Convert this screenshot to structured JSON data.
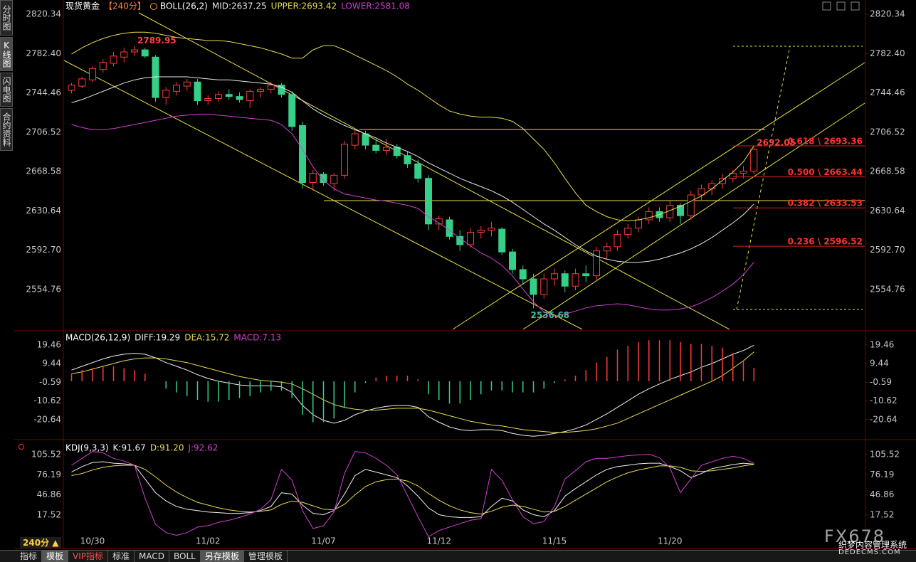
{
  "app": {
    "side_tabs": [
      "分时图",
      "K线图",
      "闪电图",
      "合约资料"
    ],
    "period_button": "240分 ▲",
    "bottom_tabs": [
      "指标",
      "模板",
      "VIP指标",
      "标准",
      "MACD",
      "BOLL",
      "另存模板",
      "管理模板"
    ],
    "watermark": {
      "logo": "FX678",
      "text": "织梦内容管理系统",
      "url": "DEDECMS.COM"
    }
  },
  "chart_data": [
    {
      "type": "candlestick",
      "title": "现货黄金",
      "period": "【240分】",
      "indicator": "BOLL(26,2)",
      "up_color": "#ff3b3b",
      "down_color": "#36cf88",
      "mark_extremes": true,
      "categories": [
        null,
        null,
        "10/30",
        null,
        null,
        null,
        null,
        null,
        null,
        null,
        null,
        null,
        null,
        "11/02",
        null,
        null,
        null,
        null,
        null,
        null,
        null,
        null,
        null,
        null,
        "11/07",
        null,
        null,
        null,
        null,
        null,
        null,
        null,
        null,
        null,
        null,
        "11/12",
        null,
        null,
        null,
        null,
        null,
        null,
        null,
        null,
        null,
        null,
        "11/15",
        null,
        null,
        null,
        null,
        null,
        null,
        null,
        null,
        null,
        null,
        "11/20",
        null,
        null,
        null,
        null,
        null,
        null,
        null,
        null
      ],
      "open": [
        2747,
        2751,
        2757,
        2767,
        2773,
        2779,
        2784,
        2786,
        2779,
        2740,
        2746,
        2751,
        2755,
        2737,
        2739,
        2743,
        2741,
        2737,
        2746,
        2748,
        2752,
        2743,
        2713,
        2658,
        2666,
        2657,
        2665,
        2694,
        2705,
        2694,
        2689,
        2692,
        2684,
        2676,
        2662,
        2618,
        2622,
        2606,
        2598,
        2610,
        2612,
        2613,
        2591,
        2574,
        2565,
        2550,
        2565,
        2570,
        2558,
        2570,
        2568,
        2592,
        2596,
        2608,
        2614,
        2622,
        2630,
        2624,
        2636,
        2626,
        2646,
        2652,
        2657,
        2662,
        2667,
        2669
      ],
      "high": [
        2754,
        2760,
        2770,
        2777,
        2784,
        2788,
        2789.95,
        2788,
        2781,
        2750,
        2755,
        2758,
        2758,
        2742,
        2746,
        2748,
        2745,
        2748,
        2750,
        2755,
        2754,
        2746,
        2717,
        2670,
        2668,
        2667,
        2698,
        2710,
        2708,
        2700,
        2700,
        2695,
        2688,
        2680,
        2665,
        2626,
        2625,
        2612,
        2614,
        2616,
        2620,
        2615,
        2594,
        2578,
        2570,
        2570,
        2575,
        2573,
        2575,
        2578,
        2596,
        2600,
        2612,
        2618,
        2625,
        2634,
        2634,
        2640,
        2638,
        2650,
        2656,
        2660,
        2666,
        2670,
        2674,
        2692.05
      ],
      "low": [
        2744,
        2749,
        2755,
        2764,
        2770,
        2774,
        2780,
        2778,
        2736,
        2733,
        2742,
        2747,
        2733,
        2733,
        2736,
        2738,
        2735,
        2730,
        2740,
        2744,
        2740,
        2708,
        2652,
        2650,
        2655,
        2650,
        2662,
        2690,
        2690,
        2686,
        2685,
        2681,
        2672,
        2658,
        2612,
        2612,
        2603,
        2592,
        2595,
        2604,
        2606,
        2588,
        2570,
        2560,
        2536.68,
        2546,
        2558,
        2552,
        2554,
        2562,
        2564,
        2584,
        2592,
        2604,
        2610,
        2618,
        2620,
        2620,
        2618,
        2622,
        2640,
        2646,
        2652,
        2658,
        2662,
        2666
      ],
      "close": [
        2752,
        2758,
        2768,
        2774,
        2780,
        2784,
        2786,
        2780,
        2740,
        2747,
        2752,
        2755,
        2737,
        2739,
        2743,
        2741,
        2738,
        2746,
        2748,
        2752,
        2743,
        2712,
        2658,
        2667,
        2658,
        2665,
        2695,
        2705,
        2694,
        2689,
        2692,
        2684,
        2676,
        2662,
        2618,
        2623,
        2606,
        2598,
        2610,
        2612,
        2614,
        2591,
        2574,
        2565,
        2550,
        2565,
        2570,
        2558,
        2570,
        2568,
        2592,
        2596,
        2608,
        2614,
        2622,
        2630,
        2624,
        2636,
        2626,
        2646,
        2652,
        2657,
        2662,
        2667,
        2669,
        2690
      ],
      "series": [
        {
          "name": "MID:2637.25",
          "color": "#e6e6e6",
          "values": [
            2735,
            2738,
            2742,
            2746,
            2750,
            2754,
            2757,
            2759,
            2760,
            2760,
            2760,
            2760,
            2759,
            2758,
            2757,
            2757,
            2756,
            2755,
            2754,
            2753,
            2750,
            2745,
            2737,
            2729,
            2723,
            2718,
            2713,
            2709,
            2705,
            2701,
            2696,
            2692,
            2688,
            2683,
            2677,
            2672,
            2667,
            2662,
            2658,
            2654,
            2650,
            2645,
            2639,
            2632,
            2625,
            2618,
            2612,
            2605,
            2598,
            2592,
            2587,
            2584,
            2582,
            2581,
            2581,
            2582,
            2584,
            2587,
            2590,
            2594,
            2599,
            2605,
            2612,
            2619,
            2627,
            2637.25
          ]
        },
        {
          "name": "UPPER:2693.42",
          "color": "#e8dc50",
          "values": [
            2782,
            2788,
            2793,
            2797,
            2800,
            2802,
            2803,
            2803,
            2802,
            2800,
            2798,
            2797,
            2796,
            2795,
            2795,
            2794,
            2792,
            2790,
            2788,
            2785,
            2782,
            2778,
            2778,
            2786,
            2790,
            2790,
            2786,
            2781,
            2776,
            2771,
            2766,
            2760,
            2753,
            2747,
            2740,
            2733,
            2727,
            2724,
            2722,
            2721,
            2721,
            2720,
            2717,
            2710,
            2700,
            2690,
            2677,
            2662,
            2648,
            2636,
            2630,
            2625,
            2622,
            2621,
            2622,
            2624,
            2627,
            2631,
            2635,
            2640,
            2645,
            2652,
            2660,
            2668,
            2678,
            2693.42
          ]
        },
        {
          "name": "LOWER:2581.08",
          "color": "#d040d0",
          "values": [
            2714,
            2711,
            2709,
            2709,
            2710,
            2712,
            2714,
            2716,
            2718,
            2720,
            2722,
            2723,
            2724,
            2724,
            2723,
            2722,
            2721,
            2720,
            2719,
            2718,
            2714,
            2705,
            2690,
            2673,
            2660,
            2652,
            2647,
            2645,
            2643,
            2641,
            2640,
            2638,
            2636,
            2633,
            2625,
            2619,
            2612,
            2604,
            2597,
            2590,
            2585,
            2578,
            2568,
            2555,
            2543,
            2533,
            2529,
            2531,
            2534,
            2537,
            2539,
            2540,
            2541,
            2540,
            2538,
            2536,
            2535,
            2535,
            2536,
            2538,
            2542,
            2547,
            2553,
            2560,
            2569,
            2581.08
          ]
        }
      ],
      "fib_levels": [
        {
          "value": 2693.36,
          "label": "0.618 \\ 2693.36"
        },
        {
          "value": 2663.44,
          "label": "0.500 \\ 2663.44"
        },
        {
          "value": 2633.53,
          "label": "0.382 \\ 2633.53"
        },
        {
          "value": 2596.52,
          "label": "0.236 \\ 2596.52"
        }
      ],
      "ylim": [
        2516.3,
        2834.1
      ],
      "yticks": [
        2820.34,
        {
          "value": 2782.4,
          "label": "2782.40"
        },
        2744.46,
        2706.52,
        2668.58,
        2630.64,
        {
          "value": 2592.7,
          "label": "2592.70"
        },
        2554.76
      ]
    },
    {
      "type": "macd",
      "title": "MACD(26,12,9)",
      "up_color": "#ff3b3b",
      "down_color": "#36cf88",
      "series": [
        {
          "name": "DIFF:19.29",
          "color": "#f0f0f0",
          "style": "line",
          "values": [
            6,
            8,
            10,
            12,
            13.5,
            14.5,
            15,
            14.5,
            12.5,
            10,
            8,
            6,
            3.5,
            1.5,
            0,
            -1,
            -2,
            -2.5,
            -2.5,
            -2.5,
            -3,
            -6,
            -13,
            -18,
            -21,
            -22.5,
            -21,
            -18,
            -16,
            -14.5,
            -13.5,
            -13,
            -13,
            -14,
            -19,
            -22,
            -24.5,
            -26,
            -26.5,
            -26,
            -26,
            -26.5,
            -28,
            -29,
            -29.5,
            -29,
            -28,
            -27,
            -25.5,
            -23.5,
            -20.5,
            -17.5,
            -14,
            -10.5,
            -7,
            -4,
            -1.5,
            1,
            3,
            5,
            7.5,
            9.5,
            12,
            14.5,
            16.5,
            19.29
          ]
        },
        {
          "name": "DEA:15.72",
          "color": "#e8dc50",
          "style": "line",
          "values": [
            4,
            5,
            6.5,
            8,
            9.5,
            11,
            12,
            12.5,
            12.5,
            12,
            11,
            10,
            8.5,
            7,
            5.5,
            4,
            2.5,
            1.5,
            0.5,
            0,
            -0.5,
            -1.5,
            -4,
            -7,
            -10,
            -12.5,
            -14,
            -15,
            -15.5,
            -15.5,
            -15,
            -14.5,
            -14.5,
            -14.5,
            -15.5,
            -17,
            -18.5,
            -20,
            -21.5,
            -22.5,
            -23.5,
            -24,
            -25,
            -26,
            -26.5,
            -27,
            -27.5,
            -27.5,
            -27,
            -26.5,
            -25.5,
            -24,
            -22.5,
            -20,
            -17.5,
            -15,
            -12.5,
            -10,
            -7.5,
            -5,
            -2.5,
            0,
            3,
            7,
            11,
            15.72
          ]
        },
        {
          "name": "MACD:7.13",
          "color": "#d040d0",
          "style": "bar",
          "values": [
            4,
            6,
            7,
            8,
            8,
            7,
            6,
            4,
            0,
            -4,
            -6,
            -8,
            -10,
            -11,
            -11,
            -10,
            -9,
            -8,
            -6,
            -5,
            -5,
            -9,
            -18,
            -22,
            -22,
            -20,
            -14,
            -6,
            -1,
            2,
            3,
            3,
            3,
            1,
            -7,
            -10,
            -12,
            -12,
            -10,
            -7,
            -5,
            -5,
            -6,
            -6,
            -6,
            -4,
            -1,
            1,
            3,
            6,
            10,
            13,
            17,
            19,
            21,
            22,
            22,
            22,
            21,
            20,
            20,
            19,
            18,
            15,
            11,
            7.13
          ]
        }
      ],
      "ylim": [
        -30.2,
        26.3
      ],
      "yticks": [
        19.46,
        9.44,
        -0.59,
        -10.62,
        -20.64
      ]
    },
    {
      "type": "line",
      "title": "KDJ(9,3,3)",
      "series": [
        {
          "name": "K:91.67",
          "color": "#f0f0f0",
          "values": [
            80,
            88,
            94,
            95,
            93,
            92,
            90,
            70,
            50,
            38,
            30,
            26,
            24,
            22,
            21,
            20,
            20,
            21,
            24,
            30,
            50,
            48,
            32,
            20,
            18,
            24,
            48,
            75,
            84,
            80,
            76,
            72,
            60,
            45,
            28,
            18,
            15,
            14,
            14,
            15,
            30,
            42,
            38,
            25,
            18,
            15,
            24,
            45,
            56,
            66,
            76,
            84,
            88,
            90,
            92,
            93,
            93,
            88,
            82,
            72,
            78,
            85,
            88,
            91,
            93,
            91.67
          ]
        },
        {
          "name": "D:91.20",
          "color": "#e8dc50",
          "values": [
            75,
            78,
            83,
            87,
            89,
            90,
            90,
            84,
            73,
            61,
            51,
            43,
            36,
            32,
            28,
            25,
            23,
            22,
            23,
            25,
            33,
            38,
            36,
            31,
            26,
            25,
            33,
            47,
            59,
            66,
            69,
            70,
            67,
            60,
            49,
            39,
            31,
            25,
            21,
            19,
            23,
            29,
            32,
            30,
            26,
            22,
            23,
            30,
            39,
            48,
            57,
            66,
            73,
            79,
            83,
            86,
            89,
            89,
            87,
            82,
            81,
            82,
            84,
            86,
            89,
            91.2
          ]
        },
        {
          "name": "J:92.62",
          "color": "#d040d0",
          "values": [
            90,
            100,
            110,
            108,
            100,
            96,
            90,
            42,
            4,
            -8,
            -12,
            -8,
            0,
            2,
            7,
            10,
            14,
            19,
            26,
            40,
            84,
            68,
            24,
            -2,
            2,
            22,
            78,
            110,
            108,
            100,
            90,
            76,
            46,
            15,
            -14,
            -5,
            0,
            5,
            10,
            12,
            84,
            68,
            40,
            15,
            5,
            8,
            30,
            70,
            82,
            95,
            100,
            100,
            102,
            104,
            105,
            106,
            101,
            86,
            50,
            70,
            90,
            95,
            100,
            103,
            100,
            92.62
          ]
        }
      ],
      "ylim": [
        -30.1,
        123.1
      ],
      "yticks": [
        105.52,
        76.19,
        46.86,
        17.52
      ]
    }
  ]
}
